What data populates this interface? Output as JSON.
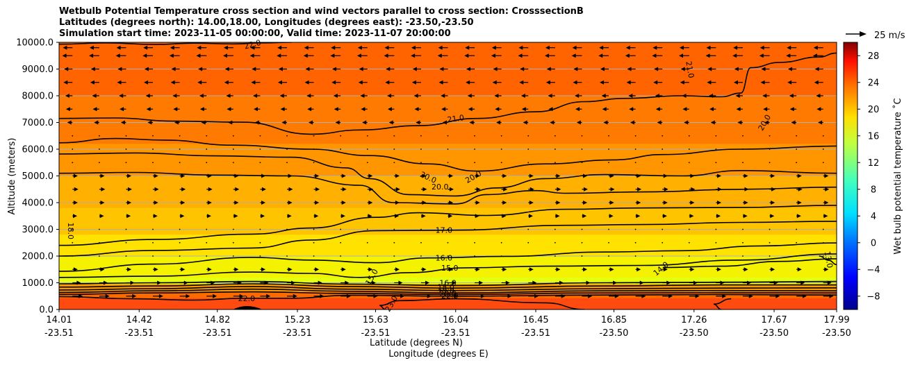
{
  "chart_data": {
    "type": "heatmap",
    "title_lines": [
      "Wetbulb Potential Temperature cross section and wind vectors parallel to cross section: CrosssectionB",
      "Latitudes (degrees north): 14.00,18.00, Longitudes (degrees east): -23.50,-23.50",
      "Simulation start time: 2023-11-05 00:00:00, Valid time: 2023-11-07 20:00:00"
    ],
    "xlabel_1": "Latitude (degrees N)",
    "xlabel_2": "Longitude (degrees E)",
    "ylabel": "Altitude (meters)",
    "x_ticks": [
      {
        "lat": "14.01",
        "lon": "-23.51"
      },
      {
        "lat": "14.42",
        "lon": "-23.51"
      },
      {
        "lat": "14.82",
        "lon": "-23.51"
      },
      {
        "lat": "15.23",
        "lon": "-23.51"
      },
      {
        "lat": "15.63",
        "lon": "-23.51"
      },
      {
        "lat": "16.04",
        "lon": "-23.51"
      },
      {
        "lat": "16.45",
        "lon": "-23.51"
      },
      {
        "lat": "16.85",
        "lon": "-23.50"
      },
      {
        "lat": "17.26",
        "lon": "-23.50"
      },
      {
        "lat": "17.67",
        "lon": "-23.50"
      },
      {
        "lat": "17.99",
        "lon": "-23.50"
      }
    ],
    "y_ticks": [
      "0.0",
      "1000.0",
      "2000.0",
      "3000.0",
      "4000.0",
      "5000.0",
      "6000.0",
      "7000.0",
      "8000.0",
      "9000.0",
      "10000.0"
    ],
    "ylim": [
      0,
      10000
    ],
    "grid": "horizontal",
    "colorbar": {
      "label": "Wet bulb potential temperature $^\\circ$C",
      "label_display": "Wet bulb potential temperature ˚C",
      "ticks": [
        "−8",
        "−4",
        "0",
        "4",
        "8",
        "12",
        "16",
        "20",
        "24",
        "28"
      ],
      "range": [
        -10,
        30
      ],
      "colormap": "jet"
    },
    "quiver_key": {
      "label": "25 m/s"
    },
    "contour_labels": [
      {
        "text": "22.0",
        "lat": 15.0,
        "alt": 9930,
        "angle": -15
      },
      {
        "text": "21.0",
        "lat": 17.24,
        "alt": 8980,
        "angle": 80
      },
      {
        "text": "21.0",
        "lat": 16.04,
        "alt": 7150,
        "angle": -8
      },
      {
        "text": "20.0",
        "lat": 17.62,
        "alt": 7000,
        "angle": -60
      },
      {
        "text": "20.0",
        "lat": 15.9,
        "alt": 4950,
        "angle": 25
      },
      {
        "text": "20.0",
        "lat": 15.96,
        "alt": 4600,
        "angle": 0
      },
      {
        "text": "20.0",
        "lat": 16.13,
        "alt": 4970,
        "angle": -30
      },
      {
        "text": "18.0",
        "lat": 14.07,
        "alt": 2940,
        "angle": 90
      },
      {
        "text": "17.0",
        "lat": 15.98,
        "alt": 2970,
        "angle": 0
      },
      {
        "text": "16.0",
        "lat": 15.98,
        "alt": 1940,
        "angle": 0
      },
      {
        "text": "15.0",
        "lat": 16.01,
        "alt": 1560,
        "angle": 0
      },
      {
        "text": "14.0",
        "lat": 17.09,
        "alt": 1530,
        "angle": -40
      },
      {
        "text": "13.0",
        "lat": 17.95,
        "alt": 1870,
        "angle": 80
      },
      {
        "text": "15.0",
        "lat": 15.61,
        "alt": 1220,
        "angle": -60
      },
      {
        "text": "16.0",
        "lat": 16.0,
        "alt": 1000,
        "angle": 0
      },
      {
        "text": "18.0",
        "lat": 15.99,
        "alt": 850,
        "angle": 0
      },
      {
        "text": "19.0",
        "lat": 15.99,
        "alt": 720,
        "angle": 0
      },
      {
        "text": "20.0",
        "lat": 16.0,
        "alt": 600,
        "angle": 0
      },
      {
        "text": "22.0",
        "lat": 16.01,
        "alt": 520,
        "angle": 0
      },
      {
        "text": "22.0",
        "lat": 14.97,
        "alt": 420,
        "angle": 0
      },
      {
        "text": "23.0",
        "lat": 15.71,
        "alt": 220,
        "angle": -60
      }
    ],
    "contours": [
      {
        "level": 22.0,
        "points": [
          [
            14.01,
            9930
          ],
          [
            14.25,
            9980
          ],
          [
            14.5,
            9920
          ],
          [
            14.7,
            9970
          ],
          [
            14.9,
            9940
          ],
          [
            15.05,
            9980
          ],
          [
            15.2,
            10000
          ]
        ]
      },
      {
        "level": 21.0,
        "points": [
          [
            14.01,
            7150
          ],
          [
            14.3,
            7170
          ],
          [
            14.6,
            7050
          ],
          [
            14.95,
            7010
          ],
          [
            15.3,
            6560
          ],
          [
            15.55,
            6720
          ],
          [
            15.85,
            6880
          ],
          [
            16.15,
            7150
          ],
          [
            16.45,
            7400
          ],
          [
            16.7,
            7780
          ],
          [
            16.9,
            7900
          ],
          [
            17.2,
            8000
          ],
          [
            17.4,
            7960
          ],
          [
            17.5,
            8100
          ],
          [
            17.55,
            9050
          ],
          [
            17.7,
            9250
          ],
          [
            17.9,
            9450
          ],
          [
            17.99,
            9600
          ]
        ]
      },
      {
        "level": 20.0,
        "points": [
          [
            14.01,
            6240
          ],
          [
            14.3,
            6400
          ],
          [
            14.55,
            6340
          ],
          [
            14.9,
            6150
          ],
          [
            15.3,
            6000
          ],
          [
            15.6,
            5760
          ],
          [
            15.9,
            5450
          ],
          [
            16.15,
            5180
          ],
          [
            16.5,
            5450
          ],
          [
            16.85,
            5600
          ],
          [
            17.1,
            5800
          ],
          [
            17.5,
            6000
          ],
          [
            17.99,
            6120
          ]
        ]
      },
      {
        "level": 20.0,
        "points": [
          [
            14.01,
            5820
          ],
          [
            14.4,
            5860
          ],
          [
            14.8,
            5750
          ],
          [
            15.2,
            5700
          ],
          [
            15.48,
            5300
          ],
          [
            15.6,
            4900
          ],
          [
            15.8,
            4300
          ],
          [
            16.04,
            4250
          ],
          [
            16.25,
            4550
          ],
          [
            16.5,
            4900
          ],
          [
            16.8,
            5050
          ],
          [
            17.2,
            5000
          ],
          [
            17.5,
            5200
          ],
          [
            17.99,
            5100
          ]
        ]
      },
      {
        "level": 19.0,
        "points": [
          [
            14.01,
            5100
          ],
          [
            14.4,
            5130
          ],
          [
            14.8,
            5030
          ],
          [
            15.2,
            5000
          ],
          [
            15.55,
            4650
          ],
          [
            15.72,
            4000
          ],
          [
            16.04,
            3950
          ],
          [
            16.2,
            4300
          ],
          [
            16.45,
            4450
          ],
          [
            16.6,
            4350
          ],
          [
            17.0,
            4400
          ],
          [
            17.5,
            4500
          ],
          [
            17.99,
            4580
          ]
        ]
      },
      {
        "level": 18.0,
        "points": [
          [
            14.01,
            2400
          ],
          [
            14.5,
            2620
          ],
          [
            15.0,
            2820
          ],
          [
            15.3,
            3050
          ],
          [
            15.63,
            3450
          ],
          [
            15.85,
            3620
          ],
          [
            16.2,
            3520
          ],
          [
            16.6,
            3750
          ],
          [
            17.0,
            3800
          ],
          [
            17.5,
            3820
          ],
          [
            17.99,
            3900
          ]
        ]
      },
      {
        "level": 17.0,
        "points": [
          [
            14.01,
            2000
          ],
          [
            14.5,
            2210
          ],
          [
            15.0,
            2300
          ],
          [
            15.3,
            2600
          ],
          [
            15.63,
            2950
          ],
          [
            16.04,
            2970
          ],
          [
            16.6,
            3150
          ],
          [
            17.0,
            3180
          ],
          [
            17.5,
            3260
          ],
          [
            17.99,
            3300
          ]
        ]
      },
      {
        "level": 16.0,
        "points": [
          [
            14.01,
            1430
          ],
          [
            14.5,
            1700
          ],
          [
            15.0,
            1950
          ],
          [
            15.3,
            1850
          ],
          [
            15.63,
            1750
          ],
          [
            15.9,
            1930
          ],
          [
            16.3,
            1990
          ],
          [
            16.8,
            2150
          ],
          [
            17.2,
            2200
          ],
          [
            17.6,
            2380
          ],
          [
            17.99,
            2490
          ]
        ]
      },
      {
        "level": 15.0,
        "points": [
          [
            14.01,
            1200
          ],
          [
            14.5,
            1250
          ],
          [
            15.0,
            1400
          ],
          [
            15.3,
            1350
          ],
          [
            15.55,
            1200
          ],
          [
            15.8,
            1380
          ],
          [
            16.1,
            1560
          ],
          [
            16.5,
            1620
          ],
          [
            17.0,
            1650
          ],
          [
            17.5,
            1850
          ],
          [
            17.99,
            2080
          ]
        ]
      },
      {
        "level": 14.0,
        "points": [
          [
            17.1,
            1570
          ],
          [
            17.4,
            1620
          ],
          [
            17.7,
            1800
          ],
          [
            17.99,
            1900
          ]
        ]
      },
      {
        "level": 13.0,
        "points": [
          [
            17.99,
            1680
          ],
          [
            17.95,
            1840
          ],
          [
            17.9,
            2000
          ]
        ]
      },
      {
        "level": 17.0,
        "points": [
          [
            14.01,
            960
          ],
          [
            14.5,
            1000
          ],
          [
            15.0,
            1050
          ],
          [
            15.5,
            950
          ],
          [
            16.04,
            900
          ],
          [
            16.8,
            1000
          ],
          [
            17.4,
            1020
          ],
          [
            17.99,
            1050
          ]
        ]
      },
      {
        "level": 18.0,
        "points": [
          [
            14.01,
            840
          ],
          [
            14.5,
            880
          ],
          [
            15.0,
            960
          ],
          [
            15.5,
            860
          ],
          [
            16.04,
            800
          ],
          [
            16.8,
            880
          ],
          [
            17.4,
            920
          ],
          [
            17.99,
            920
          ]
        ]
      },
      {
        "level": 19.0,
        "points": [
          [
            14.01,
            730
          ],
          [
            14.5,
            780
          ],
          [
            15.0,
            860
          ],
          [
            15.5,
            760
          ],
          [
            16.04,
            710
          ],
          [
            16.8,
            780
          ],
          [
            17.4,
            800
          ],
          [
            17.99,
            810
          ]
        ]
      },
      {
        "level": 20.0,
        "points": [
          [
            14.01,
            640
          ],
          [
            14.5,
            700
          ],
          [
            15.0,
            760
          ],
          [
            15.5,
            680
          ],
          [
            16.04,
            620
          ],
          [
            16.8,
            700
          ],
          [
            17.4,
            710
          ],
          [
            17.99,
            700
          ]
        ]
      },
      {
        "level": 21.0,
        "points": [
          [
            14.01,
            560
          ],
          [
            14.5,
            620
          ],
          [
            15.0,
            660
          ],
          [
            15.5,
            600
          ],
          [
            16.04,
            560
          ],
          [
            16.8,
            620
          ],
          [
            17.4,
            630
          ],
          [
            17.99,
            620
          ]
        ]
      },
      {
        "level": 22.0,
        "points": [
          [
            14.01,
            480
          ],
          [
            14.4,
            400
          ],
          [
            14.7,
            350
          ],
          [
            14.95,
            420
          ],
          [
            15.2,
            420
          ],
          [
            15.5,
            530
          ],
          [
            16.04,
            500
          ],
          [
            16.8,
            540
          ],
          [
            17.4,
            560
          ],
          [
            17.99,
            540
          ]
        ]
      },
      {
        "level": 23.0,
        "points": [
          [
            15.68,
            0
          ],
          [
            15.65,
            150
          ],
          [
            15.75,
            330
          ],
          [
            16.04,
            400
          ],
          [
            16.5,
            250
          ],
          [
            16.7,
            0
          ]
        ]
      },
      {
        "level": 23.0,
        "points": [
          [
            17.4,
            0
          ],
          [
            17.36,
            200
          ],
          [
            17.45,
            400
          ]
        ]
      }
    ],
    "fill_bands": [
      {
        "top": 10000,
        "color": "#ff6400"
      },
      {
        "top": 8000,
        "color": "#ff7a00"
      },
      {
        "top": 6200,
        "color": "#ff9600"
      },
      {
        "top": 5000,
        "color": "#ffb000"
      },
      {
        "top": 3800,
        "color": "#ffc400"
      },
      {
        "top": 2800,
        "color": "#ffe200"
      },
      {
        "top": 2000,
        "color": "#f4f200"
      },
      {
        "top": 1200,
        "color": "#e4ff10"
      },
      {
        "top": 950,
        "color": "#ff9a00"
      },
      {
        "top": 650,
        "color": "#ff6a00"
      },
      {
        "top": 420,
        "color": "#ff4a10"
      }
    ],
    "wind_rows": [
      {
        "alt": 9800,
        "u": -0.55
      },
      {
        "alt": 9500,
        "u": -0.6
      },
      {
        "alt": 9000,
        "u": -0.45
      },
      {
        "alt": 8500,
        "u": -0.5
      },
      {
        "alt": 8000,
        "u": -0.35
      },
      {
        "alt": 7500,
        "u": -0.3
      },
      {
        "alt": 7000,
        "u": -0.2
      },
      {
        "alt": 6500,
        "u": -0.1
      },
      {
        "alt": 6000,
        "u": 0.05
      },
      {
        "alt": 5500,
        "u": 0.1
      },
      {
        "alt": 5000,
        "u": 0.2
      },
      {
        "alt": 4500,
        "u": 0.25
      },
      {
        "alt": 4000,
        "u": 0.2
      },
      {
        "alt": 3500,
        "u": 0.15
      },
      {
        "alt": 3000,
        "u": 0.1
      },
      {
        "alt": 2500,
        "u": 0.05
      },
      {
        "alt": 2000,
        "u": 0.1
      },
      {
        "alt": 1500,
        "u": 0.2
      },
      {
        "alt": 1000,
        "u": 0.45
      },
      {
        "alt": 500,
        "u": 0.6
      }
    ]
  }
}
